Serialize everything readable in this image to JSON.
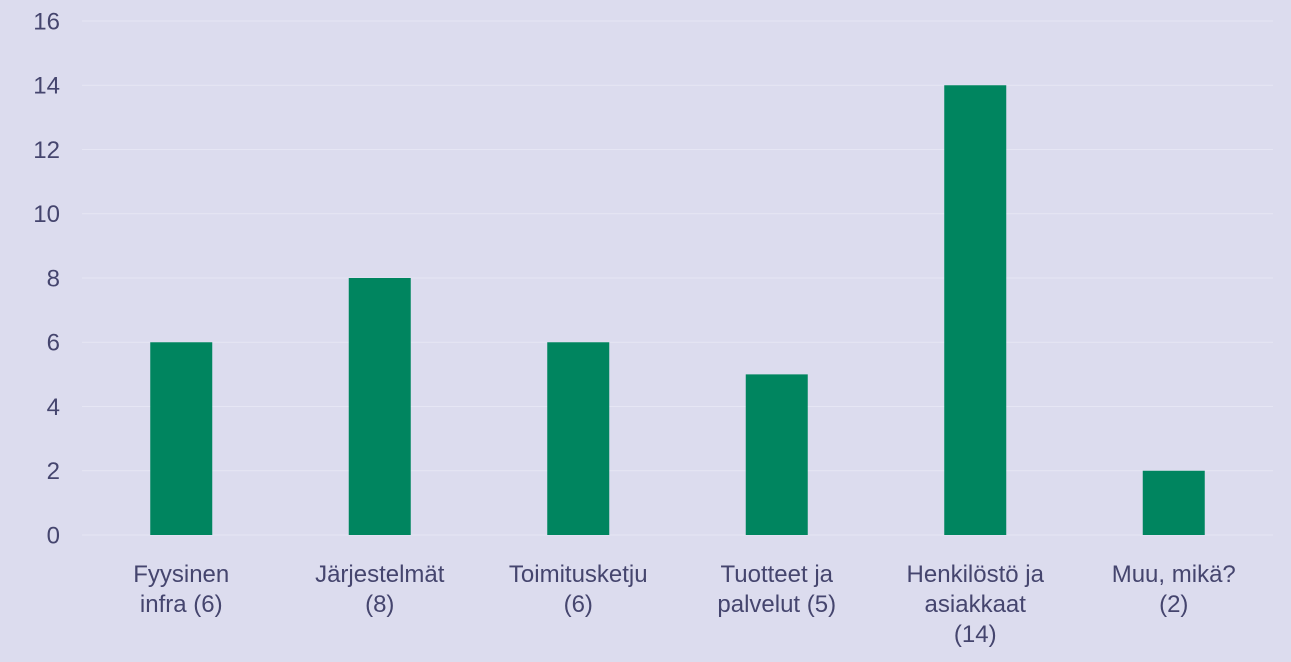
{
  "chart_data": {
    "type": "bar",
    "categories": [
      "Fyysinen infra (6)",
      "Järjestelmät (8)",
      "Toimitusketju (6)",
      "Tuotteet ja palvelut (5)",
      "Henkilöstö ja asiakkaat (14)",
      "Muu, mikä? (2)"
    ],
    "values": [
      6,
      8,
      6,
      5,
      14,
      2
    ],
    "color": "#00855f",
    "ylim": [
      0,
      16
    ],
    "yticks": [
      0,
      2,
      4,
      6,
      8,
      10,
      12,
      14,
      16
    ],
    "grid": true
  }
}
